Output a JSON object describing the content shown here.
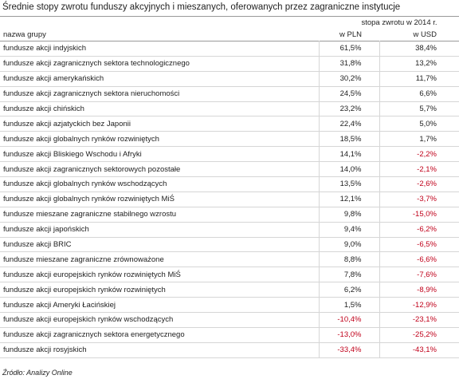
{
  "header": {
    "title": "Średnie stopy zwrotu funduszy akcyjnych i mieszanych, oferowanych przez zagraniczne instytucje"
  },
  "table": {
    "group_header": "stopa zwrotu w 2014 r.",
    "columns": [
      "nazwa grupy",
      "w PLN",
      "w USD"
    ],
    "rows": [
      [
        "fundusze akcji indyjskich",
        "61,5%",
        "38,4%"
      ],
      [
        "fundusze akcji zagranicznych sektora technologicznego",
        "31,8%",
        "13,2%"
      ],
      [
        "fundusze akcji amerykańskich",
        "30,2%",
        "11,7%"
      ],
      [
        "fundusze akcji zagranicznych sektora nieruchomości",
        "24,5%",
        "6,6%"
      ],
      [
        "fundusze akcji chińskich",
        "23,2%",
        "5,7%"
      ],
      [
        "fundusze akcji azjatyckich bez Japonii",
        "22,4%",
        "5,0%"
      ],
      [
        "fundusze akcji globalnych rynków rozwiniętych",
        "18,5%",
        "1,7%"
      ],
      [
        "fundusze akcji Bliskiego Wschodu i Afryki",
        "14,1%",
        "-2,2%"
      ],
      [
        "fundusze akcji zagranicznych sektorowych pozostałe",
        "14,0%",
        "-2,1%"
      ],
      [
        "fundusze akcji globalnych rynków wschodzących",
        "13,5%",
        "-2,6%"
      ],
      [
        "fundusze akcji globalnych rynków rozwiniętych MiŚ",
        "12,1%",
        "-3,7%"
      ],
      [
        "fundusze mieszane zagraniczne stabilnego wzrostu",
        "9,8%",
        "-15,0%"
      ],
      [
        "fundusze akcji japońskich",
        "9,4%",
        "-6,2%"
      ],
      [
        "fundusze akcji BRIC",
        "9,0%",
        "-6,5%"
      ],
      [
        "fundusze mieszane zagraniczne zrównoważone",
        "8,8%",
        "-6,6%"
      ],
      [
        "fundusze akcji europejskich rynków rozwiniętych MiŚ",
        "7,8%",
        "-7,6%"
      ],
      [
        "fundusze akcji europejskich rynków rozwiniętych",
        "6,2%",
        "-8,9%"
      ],
      [
        "fundusze akcji Ameryki Łacińskiej",
        "1,5%",
        "-12,9%"
      ],
      [
        "fundusze akcji europejskich rynków wschodzących",
        "-10,4%",
        "-23,1%"
      ],
      [
        "fundusze akcji zagranicznych sektora energetycznego",
        "-13,0%",
        "-25,2%"
      ],
      [
        "fundusze akcji rosyjskich",
        "-33,4%",
        "-43,1%"
      ]
    ]
  },
  "footer": {
    "source": "Źródło: Analizy Online"
  }
}
